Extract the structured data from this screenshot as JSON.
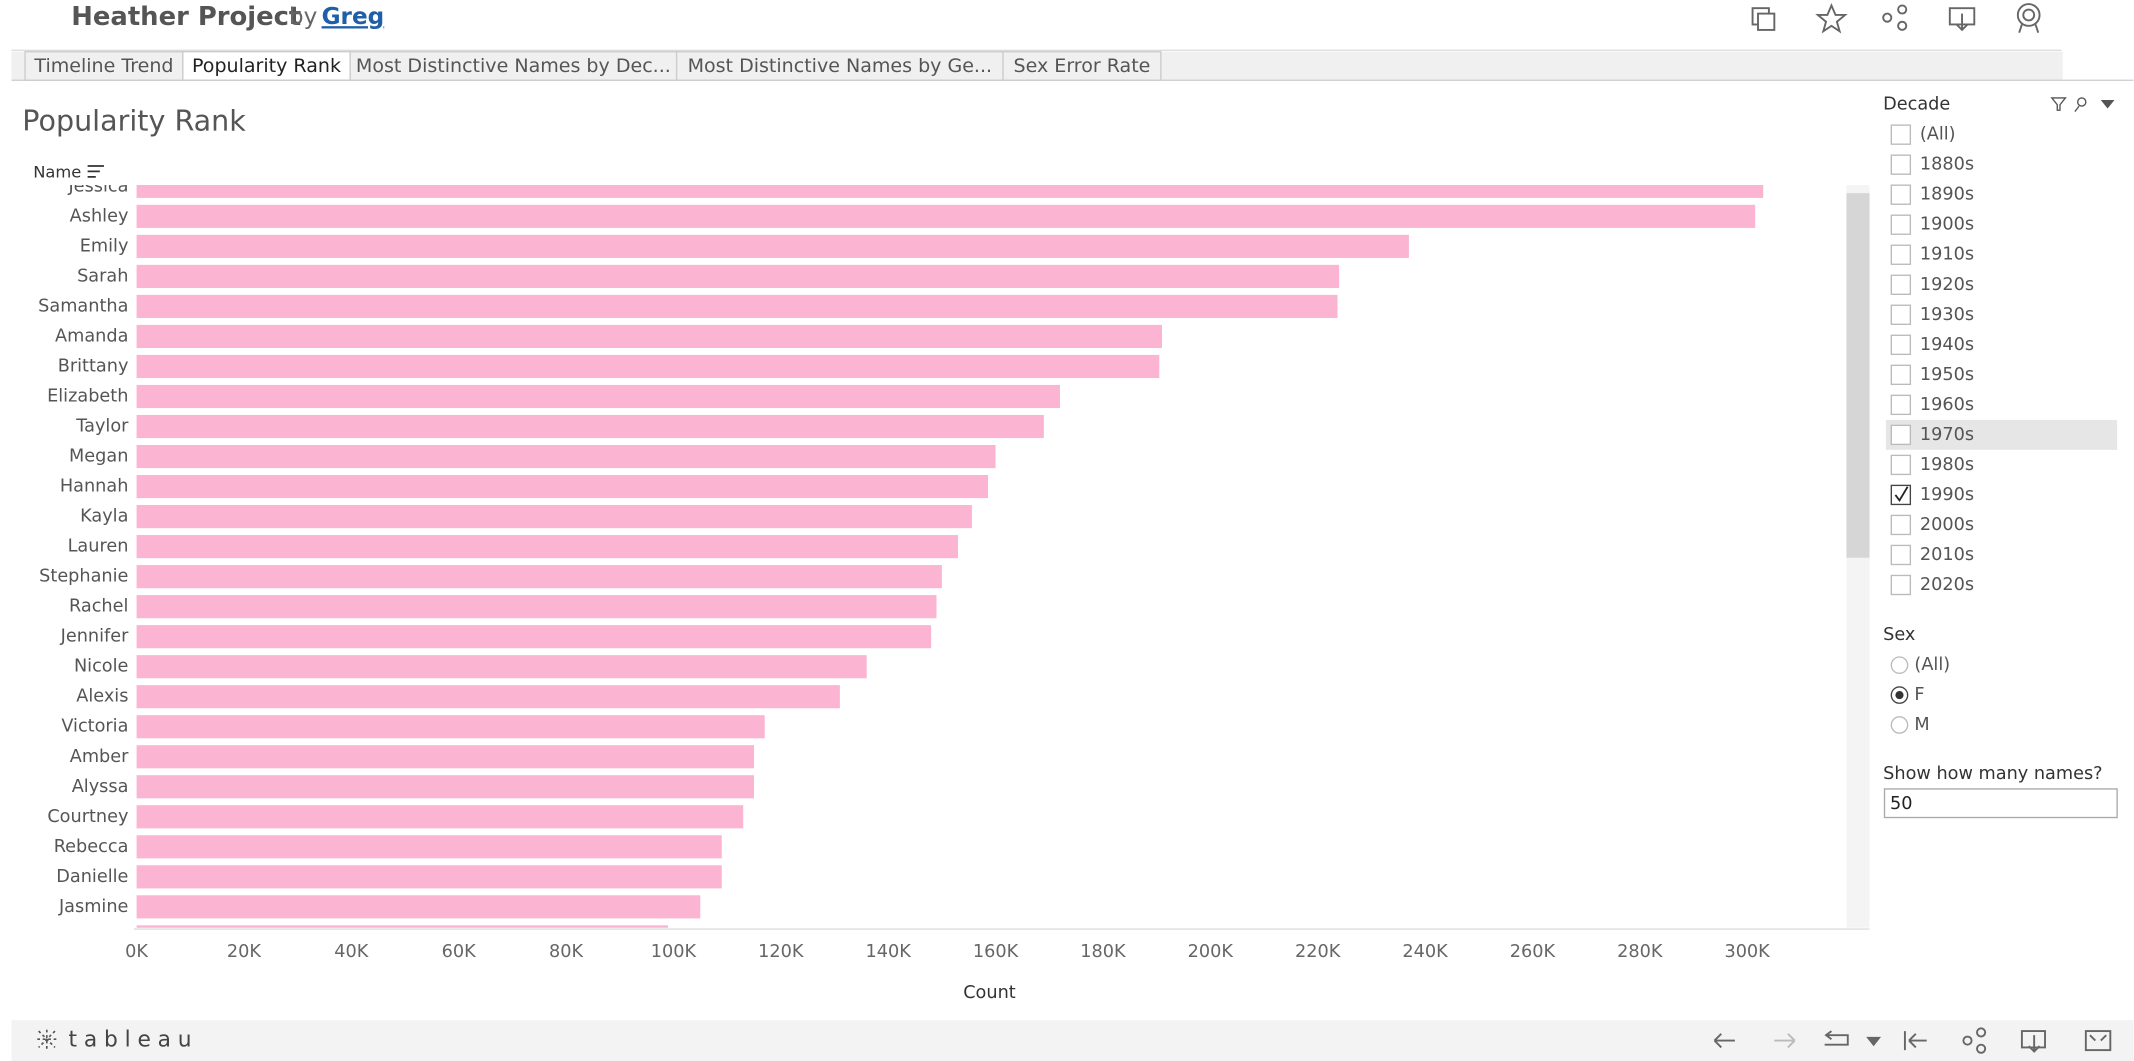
{
  "header": {
    "title": "Heather Project",
    "by": "by",
    "author": "Greg"
  },
  "tabs": [
    {
      "label": "Timeline Trend",
      "active": false
    },
    {
      "label": "Popularity Rank",
      "active": true
    },
    {
      "label": "Most Distinctive Names by Dec...",
      "active": false
    },
    {
      "label": "Most Distinctive Names by Ge...",
      "active": false
    },
    {
      "label": "Sex Error Rate",
      "active": false
    }
  ],
  "chart_data": {
    "type": "bar",
    "title": "Popularity Rank",
    "y_label": "Name",
    "x_label": "Count",
    "categories": [
      "Jessica",
      "Ashley",
      "Emily",
      "Sarah",
      "Samantha",
      "Amanda",
      "Brittany",
      "Elizabeth",
      "Taylor",
      "Megan",
      "Hannah",
      "Kayla",
      "Lauren",
      "Stephanie",
      "Rachel",
      "Jennifer",
      "Nicole",
      "Alexis",
      "Victoria",
      "Amber",
      "Alyssa",
      "Courtney",
      "Rebecca",
      "Danielle",
      "Jasmine",
      null
    ],
    "values": [
      303000,
      301500,
      237000,
      224000,
      223700,
      191000,
      190500,
      172000,
      169000,
      160000,
      158600,
      155600,
      153000,
      150000,
      149000,
      148000,
      136000,
      131000,
      117000,
      115000,
      115000,
      113000,
      109000,
      109000,
      105000,
      99000
    ],
    "color": "#fbb4d2",
    "xlim": [
      0,
      315000
    ],
    "xticks": [
      {
        "value": 0,
        "label": "0K"
      },
      {
        "value": 20000,
        "label": "20K"
      },
      {
        "value": 40000,
        "label": "40K"
      },
      {
        "value": 60000,
        "label": "60K"
      },
      {
        "value": 80000,
        "label": "80K"
      },
      {
        "value": 100000,
        "label": "100K"
      },
      {
        "value": 120000,
        "label": "120K"
      },
      {
        "value": 140000,
        "label": "140K"
      },
      {
        "value": 160000,
        "label": "160K"
      },
      {
        "value": 180000,
        "label": "180K"
      },
      {
        "value": 200000,
        "label": "200K"
      },
      {
        "value": 220000,
        "label": "220K"
      },
      {
        "value": 240000,
        "label": "240K"
      },
      {
        "value": 260000,
        "label": "260K"
      },
      {
        "value": 280000,
        "label": "280K"
      },
      {
        "value": 300000,
        "label": "300K"
      }
    ],
    "grid": true
  },
  "filters": {
    "decade": {
      "title": "Decade",
      "options": [
        {
          "label": "(All)",
          "checked": false
        },
        {
          "label": "1880s",
          "checked": false
        },
        {
          "label": "1890s",
          "checked": false
        },
        {
          "label": "1900s",
          "checked": false
        },
        {
          "label": "1910s",
          "checked": false
        },
        {
          "label": "1920s",
          "checked": false
        },
        {
          "label": "1930s",
          "checked": false
        },
        {
          "label": "1940s",
          "checked": false
        },
        {
          "label": "1950s",
          "checked": false
        },
        {
          "label": "1960s",
          "checked": false
        },
        {
          "label": "1970s",
          "checked": false
        },
        {
          "label": "1980s",
          "checked": false
        },
        {
          "label": "1990s",
          "checked": true
        },
        {
          "label": "2000s",
          "checked": false
        },
        {
          "label": "2010s",
          "checked": false
        },
        {
          "label": "2020s",
          "checked": false
        }
      ]
    },
    "sex": {
      "title": "Sex",
      "options": [
        {
          "label": "(All)",
          "selected": false
        },
        {
          "label": "F",
          "selected": true
        },
        {
          "label": "M",
          "selected": false
        }
      ]
    },
    "count": {
      "title": "Show how many names?",
      "value": "50"
    }
  },
  "footer": {
    "brand": "tableau"
  }
}
